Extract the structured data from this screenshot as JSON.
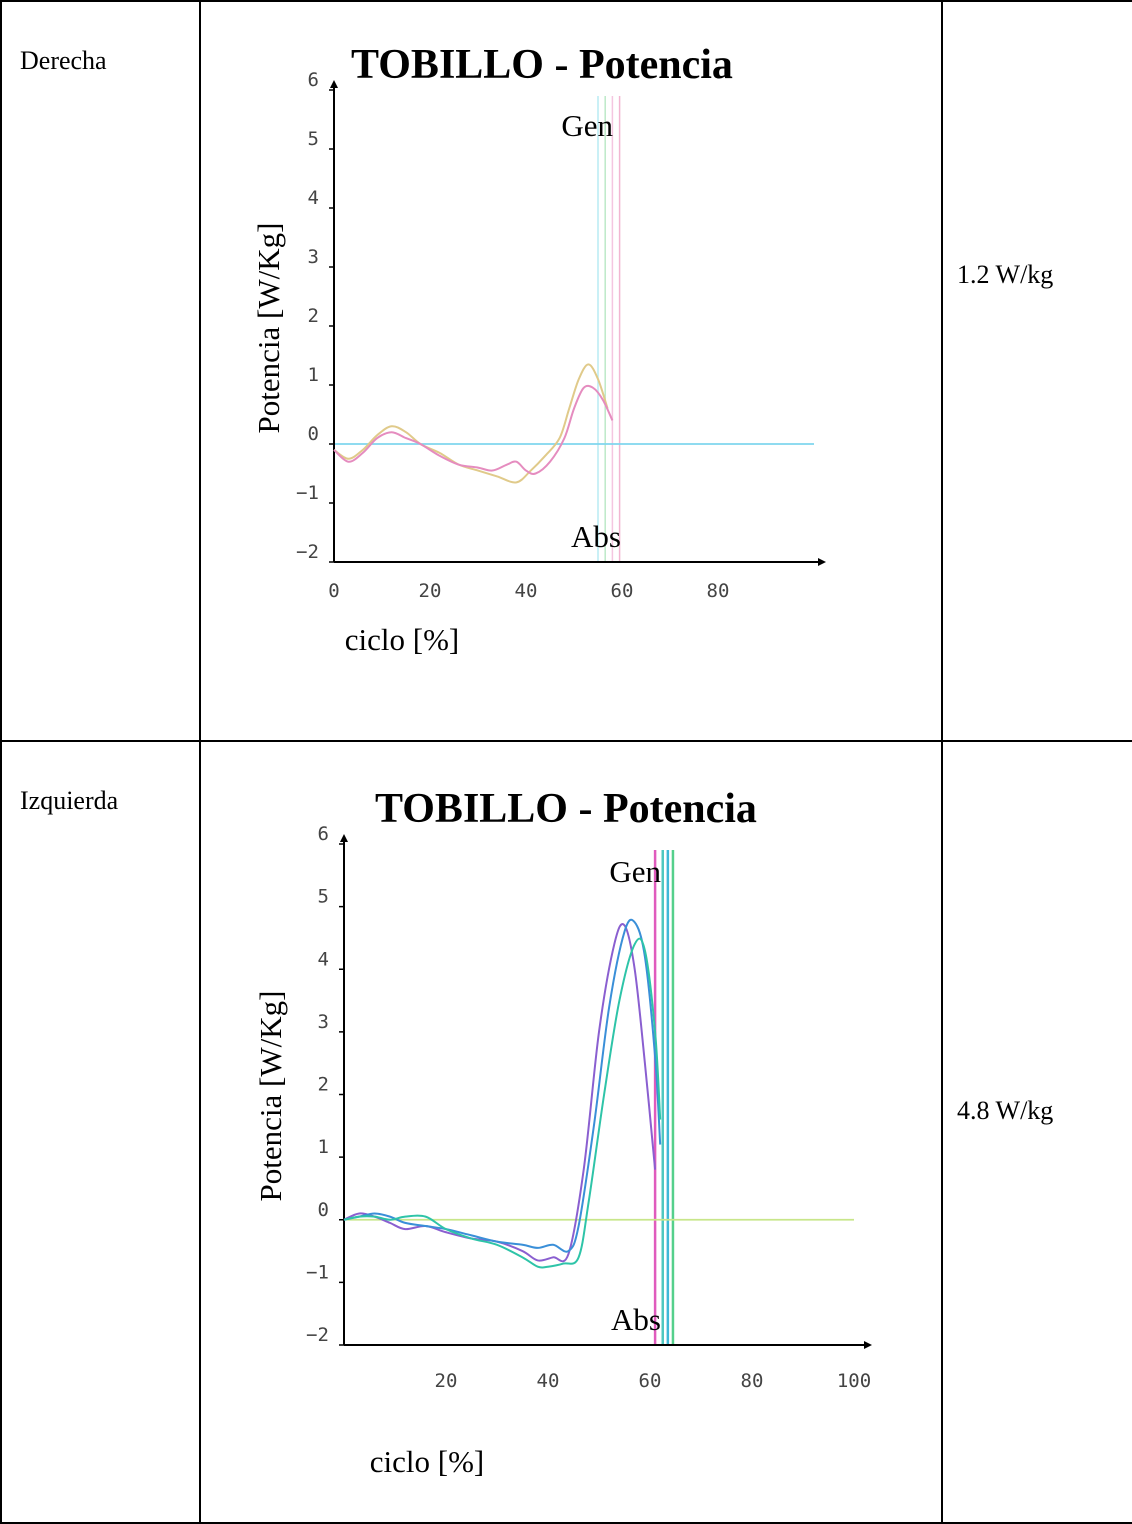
{
  "rows": [
    {
      "side": "Derecha",
      "value": "1.2 W/kg"
    },
    {
      "side": "Izquierda",
      "value": "4.8 W/kg"
    }
  ],
  "chart_data": [
    {
      "type": "line",
      "title": "TOBILLO - Potencia",
      "xlabel": "ciclo [%]",
      "ylabel": "Potencia [W/Kg]",
      "annotations": {
        "top_right": "Gen",
        "bottom_right": "Abs"
      },
      "xlim": [
        0,
        100
      ],
      "ylim": [
        -2,
        6
      ],
      "x_ticks": [
        "0",
        "20",
        "40",
        "60",
        "80"
      ],
      "y_ticks": [
        "6",
        "5",
        "4",
        "3",
        "2",
        "1",
        "0",
        "−1",
        "−2"
      ],
      "y_tick_values": [
        6,
        5,
        4,
        3,
        2,
        1,
        0,
        -1,
        -2
      ],
      "baseline": {
        "y": 0,
        "x": [
          0,
          100
        ],
        "color": "#7fd6ee"
      },
      "vertical_lines": [
        {
          "x": 55.0,
          "color": "#b8ecf4"
        },
        {
          "x": 56.5,
          "color": "#bde9c8"
        },
        {
          "x": 58.0,
          "color": "#f4c6e0"
        },
        {
          "x": 59.5,
          "color": "#f2b6d2"
        }
      ],
      "series": [
        {
          "color": "#e0ca8a",
          "x": [
            0,
            3,
            6,
            9,
            12,
            15,
            18,
            22,
            26,
            30,
            34,
            38,
            41,
            44,
            47,
            49,
            51,
            53,
            55,
            57
          ],
          "y": [
            -0.1,
            -0.25,
            -0.1,
            0.15,
            0.3,
            0.2,
            0.0,
            -0.15,
            -0.35,
            -0.45,
            -0.55,
            -0.65,
            -0.45,
            -0.2,
            0.1,
            0.6,
            1.1,
            1.35,
            1.1,
            0.6
          ]
        },
        {
          "color": "#e58cbf",
          "x": [
            0,
            3,
            6,
            9,
            12,
            15,
            18,
            22,
            26,
            30,
            33,
            36,
            38,
            40,
            42,
            45,
            48,
            50,
            52,
            54,
            56,
            58
          ],
          "y": [
            -0.1,
            -0.3,
            -0.15,
            0.1,
            0.2,
            0.1,
            0.0,
            -0.2,
            -0.35,
            -0.4,
            -0.45,
            -0.35,
            -0.3,
            -0.45,
            -0.5,
            -0.3,
            0.1,
            0.6,
            0.95,
            0.95,
            0.75,
            0.4
          ]
        }
      ]
    },
    {
      "type": "line",
      "title": "TOBILLO - Potencia",
      "xlabel": "ciclo [%]",
      "ylabel": "Potencia [W/Kg]",
      "annotations": {
        "top_right": "Gen",
        "bottom_right": "Abs"
      },
      "xlim": [
        0,
        100
      ],
      "ylim": [
        -2,
        6
      ],
      "x_ticks": [
        "20",
        "40",
        "60",
        "80",
        "100"
      ],
      "x_tick_values": [
        20,
        40,
        60,
        80,
        100
      ],
      "y_ticks": [
        "6",
        "5",
        "4",
        "3",
        "2",
        "1",
        "0",
        "−1",
        "−2"
      ],
      "y_tick_values": [
        6,
        5,
        4,
        3,
        2,
        1,
        0,
        -1,
        -2
      ],
      "baseline": {
        "y": 0,
        "x": [
          0,
          100
        ],
        "color": "#c8e68a"
      },
      "vertical_lines": [
        {
          "x": 61.0,
          "color": "#e05bbd"
        },
        {
          "x": 62.5,
          "color": "#4fc8c0"
        },
        {
          "x": 63.5,
          "color": "#3fb8d8"
        },
        {
          "x": 64.5,
          "color": "#55d08c"
        }
      ],
      "series": [
        {
          "color": "#8a5fd0",
          "x": [
            0,
            3,
            6,
            9,
            12,
            16,
            20,
            25,
            30,
            35,
            38,
            41,
            44,
            47,
            50,
            53,
            55,
            57,
            59,
            61
          ],
          "y": [
            0.0,
            0.1,
            0.05,
            -0.05,
            -0.15,
            -0.1,
            -0.2,
            -0.3,
            -0.35,
            -0.5,
            -0.65,
            -0.6,
            -0.55,
            0.8,
            3.0,
            4.4,
            4.7,
            4.0,
            2.5,
            0.8
          ]
        },
        {
          "color": "#3a8fd8",
          "x": [
            0,
            3,
            6,
            9,
            12,
            16,
            20,
            25,
            30,
            35,
            38,
            41,
            44,
            46,
            49,
            52,
            55,
            57,
            59,
            61,
            62
          ],
          "y": [
            0.0,
            0.05,
            0.1,
            0.05,
            -0.05,
            -0.1,
            -0.15,
            -0.25,
            -0.35,
            -0.4,
            -0.45,
            -0.4,
            -0.5,
            -0.1,
            1.5,
            3.4,
            4.6,
            4.75,
            4.2,
            2.6,
            1.2
          ]
        },
        {
          "color": "#2ec4a8",
          "x": [
            0,
            3,
            6,
            9,
            12,
            16,
            20,
            25,
            30,
            35,
            38,
            40,
            43,
            46,
            48,
            51,
            54,
            57,
            59,
            61,
            62
          ],
          "y": [
            0.0,
            0.05,
            0.05,
            0.0,
            0.05,
            0.05,
            -0.15,
            -0.3,
            -0.4,
            -0.6,
            -0.75,
            -0.75,
            -0.7,
            -0.6,
            0.3,
            2.0,
            3.5,
            4.4,
            4.3,
            3.0,
            1.6
          ]
        }
      ]
    }
  ]
}
